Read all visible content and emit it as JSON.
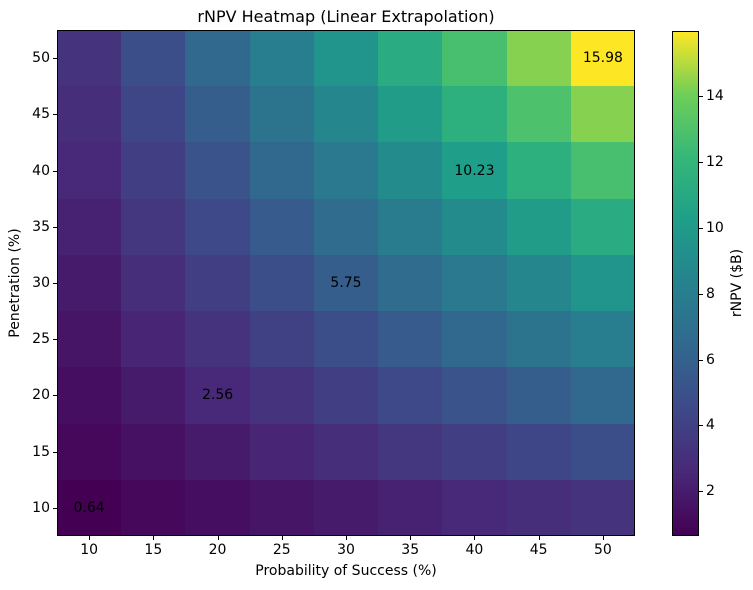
{
  "figure": {
    "background": "#ffffff",
    "text_color": "#000000",
    "axes_edge_color": "#000000"
  },
  "chart_data": {
    "type": "heatmap",
    "title": "rNPV Heatmap (Linear Extrapolation)",
    "xlabel": "Probability of Success (%)",
    "ylabel": "Penetration (%)",
    "x": [
      10,
      15,
      20,
      25,
      30,
      35,
      40,
      45,
      50
    ],
    "y": [
      10,
      15,
      20,
      25,
      30,
      35,
      40,
      45,
      50
    ],
    "x_tick_labels": [
      "10",
      "15",
      "20",
      "25",
      "30",
      "35",
      "40",
      "45",
      "50"
    ],
    "y_tick_labels": [
      "10",
      "15",
      "20",
      "25",
      "30",
      "35",
      "40",
      "45",
      "50"
    ],
    "values_note": "rows ordered by ascending y (bottom row first); columns by ascending x",
    "values": [
      [
        0.64,
        0.96,
        1.28,
        1.6,
        1.92,
        2.24,
        2.56,
        2.88,
        3.2
      ],
      [
        0.96,
        1.44,
        1.92,
        2.4,
        2.88,
        3.36,
        3.84,
        4.31,
        4.79
      ],
      [
        1.28,
        1.92,
        2.56,
        3.2,
        3.84,
        4.47,
        5.11,
        5.75,
        6.39
      ],
      [
        1.6,
        2.4,
        3.2,
        4.0,
        4.79,
        5.59,
        6.39,
        7.19,
        7.99
      ],
      [
        1.92,
        2.88,
        3.84,
        4.79,
        5.75,
        6.71,
        7.67,
        8.63,
        9.59
      ],
      [
        2.24,
        3.36,
        4.47,
        5.59,
        6.71,
        7.83,
        8.95,
        10.07,
        11.19
      ],
      [
        2.56,
        3.84,
        5.11,
        6.39,
        7.67,
        8.95,
        10.23,
        11.51,
        12.78
      ],
      [
        2.88,
        4.31,
        5.75,
        7.19,
        8.63,
        10.07,
        11.51,
        12.94,
        14.38
      ],
      [
        3.2,
        4.79,
        6.39,
        7.99,
        9.59,
        11.19,
        12.78,
        14.38,
        15.98
      ]
    ],
    "vmin": 0.64,
    "vmax": 15.98,
    "grid": false,
    "colormap": "viridis",
    "viridis_anchors": [
      "#440154",
      "#482878",
      "#3e4989",
      "#31688e",
      "#26828e",
      "#1f9e89",
      "#35b779",
      "#6ece58",
      "#fde725"
    ],
    "annotations": [
      {
        "x": 10,
        "y": 10,
        "label": "0.64"
      },
      {
        "x": 20,
        "y": 20,
        "label": "2.56"
      },
      {
        "x": 30,
        "y": 30,
        "label": "5.75"
      },
      {
        "x": 40,
        "y": 40,
        "label": "10.23"
      },
      {
        "x": 50,
        "y": 50,
        "label": "15.98"
      }
    ],
    "colorbar": {
      "label": "rNPV ($B)",
      "ticks": [
        2,
        4,
        6,
        8,
        10,
        12,
        14
      ],
      "tick_labels": [
        "2",
        "4",
        "6",
        "8",
        "10",
        "12",
        "14"
      ],
      "position": "right"
    }
  }
}
